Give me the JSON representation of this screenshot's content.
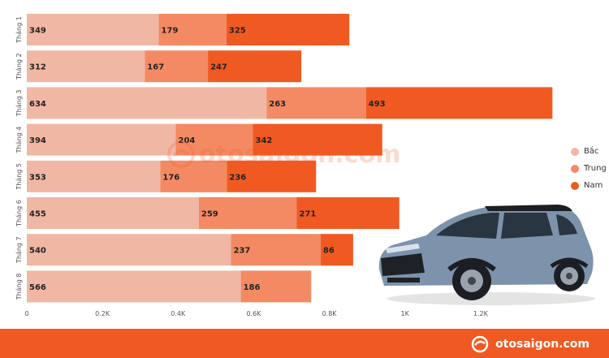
{
  "chart_data": {
    "type": "bar",
    "orientation": "horizontal",
    "stacked": true,
    "categories": [
      "Tháng 1",
      "Tháng 2",
      "Tháng 3",
      "Tháng 4",
      "Tháng 5",
      "Tháng 6",
      "Tháng 7",
      "Tháng 8"
    ],
    "series": [
      {
        "name": "Bắc",
        "color": "#f0b8a4",
        "values": [
          349,
          312,
          634,
          394,
          353,
          455,
          540,
          566
        ]
      },
      {
        "name": "Trung",
        "color": "#f48a63",
        "values": [
          179,
          167,
          263,
          204,
          176,
          259,
          237,
          186
        ]
      },
      {
        "name": "Nam",
        "color": "#f05a22",
        "values": [
          325,
          247,
          493,
          342,
          236,
          271,
          86,
          0
        ]
      }
    ],
    "xlim": [
      0,
      1400
    ],
    "xticks": [
      "0",
      "0.2K",
      "0.4K",
      "0.6K",
      "0.8K",
      "1K",
      "1.2K"
    ],
    "xtick_values": [
      0,
      200,
      400,
      600,
      800,
      1000,
      1200
    ],
    "legend_position": "right",
    "grid": false,
    "title": "",
    "xlabel": "",
    "ylabel": ""
  },
  "watermark": {
    "text": "otosaigon.com"
  },
  "footer": {
    "brand": "otosaigon.com",
    "background": "#f05a22"
  },
  "car_image": {
    "icon": "suv-car-image"
  }
}
